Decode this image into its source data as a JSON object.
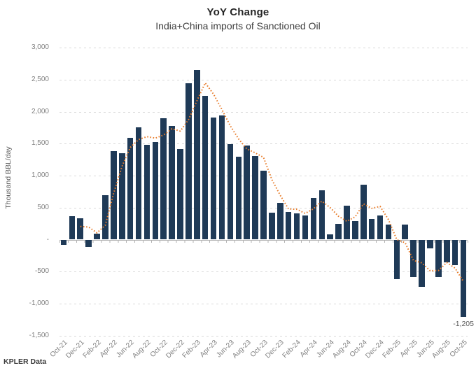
{
  "header": {
    "title": "YoY Change",
    "subtitle": "India+China imports of Sanctioned Oil"
  },
  "footer": {
    "source_label": "KPLER Data"
  },
  "chart_data": {
    "type": "bar",
    "title": "YoY Change",
    "subtitle": "India+China imports of Sanctioned Oil",
    "xlabel": "",
    "ylabel": "Thousand BBL/day",
    "ylim": [
      -1500,
      3000
    ],
    "ytick_interval": 500,
    "ytick_labels": [
      "3,000",
      "2,500",
      "2,000",
      "1,500",
      "1,000",
      "500",
      "-",
      "-500",
      "-1,000",
      "-1,500"
    ],
    "ytick_values": [
      3000,
      2500,
      2000,
      1500,
      1000,
      500,
      0,
      -500,
      -1000,
      -1500
    ],
    "xtick_labels": [
      "Oct-21",
      "Dec-21",
      "Feb-22",
      "Apr-22",
      "Jun-22",
      "Aug-22",
      "Oct-22",
      "Dec-22",
      "Feb-23",
      "Apr-23",
      "Jun-23",
      "Aug-23",
      "Oct-23",
      "Dec-23",
      "Feb-24",
      "Apr-24",
      "Jun-24",
      "Aug-24",
      "Oct-24",
      "Dec-24",
      "Feb-25",
      "Apr-25",
      "Jun-25",
      "Aug-25",
      "Oct-25"
    ],
    "categories": [
      "Oct-21",
      "Nov-21",
      "Dec-21",
      "Jan-22",
      "Feb-22",
      "Mar-22",
      "Apr-22",
      "May-22",
      "Jun-22",
      "Jul-22",
      "Aug-22",
      "Sep-22",
      "Oct-22",
      "Nov-22",
      "Dec-22",
      "Jan-23",
      "Feb-23",
      "Mar-23",
      "Apr-23",
      "May-23",
      "Jun-23",
      "Jul-23",
      "Aug-23",
      "Sep-23",
      "Oct-23",
      "Nov-23",
      "Dec-23",
      "Jan-24",
      "Feb-24",
      "Mar-24",
      "Apr-24",
      "May-24",
      "Jun-24",
      "Jul-24",
      "Aug-24",
      "Sep-24",
      "Oct-24",
      "Nov-24",
      "Dec-24",
      "Jan-25",
      "Feb-25",
      "Mar-25",
      "Apr-25",
      "May-25",
      "Jun-25",
      "Jul-25",
      "Aug-25",
      "Sep-25",
      "Oct-25"
    ],
    "values": [
      -85,
      365,
      335,
      -110,
      90,
      695,
      1385,
      1345,
      1590,
      1755,
      1480,
      1520,
      1900,
      1775,
      1410,
      2440,
      2655,
      2250,
      1910,
      1935,
      1490,
      1295,
      1465,
      1305,
      1080,
      425,
      575,
      435,
      410,
      380,
      655,
      765,
      80,
      250,
      530,
      285,
      860,
      320,
      375,
      240,
      -620,
      235,
      -590,
      -735,
      -135,
      -580,
      -360,
      -400,
      -1205
    ],
    "bar_color": "#1f3a57",
    "trend_line": {
      "type": "3-month trailing moving average",
      "style": "dotted",
      "color": "#e87d2c"
    },
    "annotation": {
      "text": "-1,205",
      "category": "Oct-25"
    },
    "grid": "horizontal-dashed",
    "gridline_color": "#d9d9d9",
    "legend_position": "none"
  }
}
